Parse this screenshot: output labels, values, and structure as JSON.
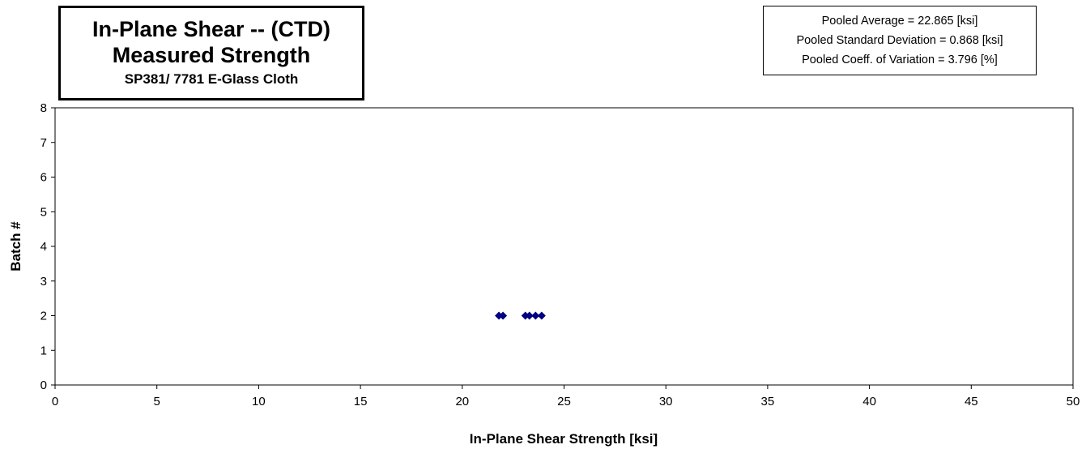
{
  "title_box": {
    "line1": "In-Plane Shear -- (CTD)",
    "line2": "Measured Strength",
    "line3": "SP381/ 7781 E-Glass Cloth"
  },
  "stats_box": {
    "line1": "Pooled Average = 22.865 [ksi]",
    "line2": "Pooled Standard Deviation = 0.868  [ksi]",
    "line3": "Pooled Coeff. of  Variation = 3.796 [%]"
  },
  "chart_data": {
    "type": "scatter",
    "xlabel": "In-Plane Shear Strength  [ksi]",
    "ylabel": "Batch #",
    "xlim": [
      0,
      50
    ],
    "ylim": [
      0,
      8
    ],
    "x_ticks": [
      0,
      5,
      10,
      15,
      20,
      25,
      30,
      35,
      40,
      45,
      50
    ],
    "y_ticks": [
      0,
      1,
      2,
      3,
      4,
      5,
      6,
      7,
      8
    ],
    "grid": false,
    "marker": "diamond",
    "marker_color": "#000080",
    "series": [
      {
        "points": [
          {
            "x": 21.8,
            "y": 2
          },
          {
            "x": 22.0,
            "y": 2
          },
          {
            "x": 23.1,
            "y": 2
          },
          {
            "x": 23.3,
            "y": 2
          },
          {
            "x": 23.6,
            "y": 2
          },
          {
            "x": 23.9,
            "y": 2
          }
        ]
      }
    ]
  }
}
